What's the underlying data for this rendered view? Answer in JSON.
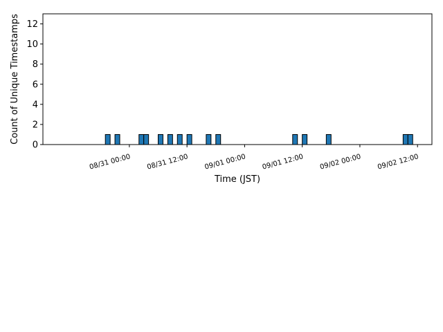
{
  "chart_data": {
    "type": "bar",
    "xlabel": "Time (JST)",
    "ylabel": "Count of Unique Timestamps",
    "ylim": [
      0,
      13
    ],
    "yticks": [
      0,
      2,
      4,
      6,
      8,
      10,
      12
    ],
    "xlim": [
      "08/30 06:00",
      "09/02 15:00"
    ],
    "xticks": [
      {
        "label": "08/31 00:00",
        "hours": 24
      },
      {
        "label": "08/31 12:00",
        "hours": 36
      },
      {
        "label": "09/01 00:00",
        "hours": 48
      },
      {
        "label": "09/01 12:00",
        "hours": 60
      },
      {
        "label": "09/02 00:00",
        "hours": 72
      },
      {
        "label": "09/02 12:00",
        "hours": 84
      }
    ],
    "bar_width_hours": 1,
    "bars": [
      {
        "time": "08/30 19:00",
        "hours": 19,
        "value": 1
      },
      {
        "time": "08/30 21:00",
        "hours": 21,
        "value": 1
      },
      {
        "time": "08/31 02:00",
        "hours": 26,
        "value": 1
      },
      {
        "time": "08/31 03:00",
        "hours": 27,
        "value": 1
      },
      {
        "time": "08/31 06:00",
        "hours": 30,
        "value": 1
      },
      {
        "time": "08/31 08:00",
        "hours": 32,
        "value": 1
      },
      {
        "time": "08/31 10:00",
        "hours": 34,
        "value": 1
      },
      {
        "time": "08/31 12:00",
        "hours": 36,
        "value": 1
      },
      {
        "time": "08/31 16:00",
        "hours": 40,
        "value": 1
      },
      {
        "time": "08/31 18:00",
        "hours": 42,
        "value": 1
      },
      {
        "time": "09/01 10:00",
        "hours": 58,
        "value": 1
      },
      {
        "time": "09/01 12:00",
        "hours": 60,
        "value": 1
      },
      {
        "time": "09/01 17:00",
        "hours": 65,
        "value": 1
      },
      {
        "time": "09/02 09:00",
        "hours": 81,
        "value": 1
      },
      {
        "time": "09/02 10:00",
        "hours": 82,
        "value": 1
      }
    ],
    "colors": {
      "bar_fill": "#1f77b4",
      "bar_edge": "#000000"
    },
    "grid": false,
    "legend": "none"
  }
}
